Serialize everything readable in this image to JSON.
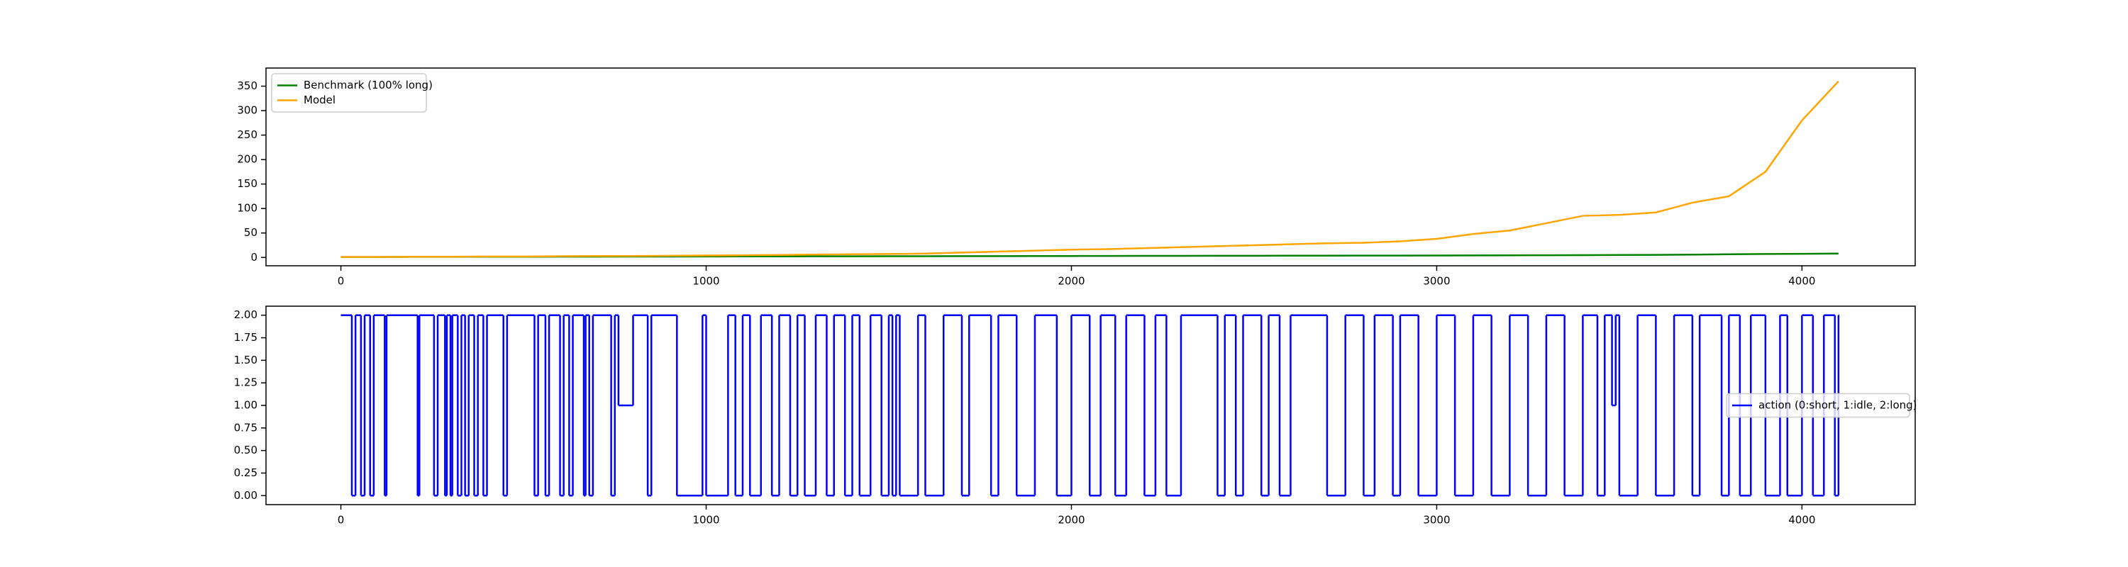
{
  "chart_data": [
    {
      "type": "line",
      "legend": "upper left",
      "x": [
        0,
        100,
        200,
        300,
        400,
        500,
        600,
        700,
        800,
        900,
        1000,
        1100,
        1200,
        1300,
        1400,
        1500,
        1600,
        1700,
        1800,
        1900,
        2000,
        2100,
        2200,
        2300,
        2400,
        2500,
        2600,
        2700,
        2800,
        2900,
        3000,
        3100,
        3200,
        3300,
        3400,
        3500,
        3600,
        3700,
        3800,
        3900,
        4000,
        4100
      ],
      "series": [
        {
          "name": "Benchmark (100% long)",
          "color": "#008000",
          "values": [
            1,
            1,
            1.2,
            1.3,
            1.4,
            1.5,
            1.6,
            1.7,
            1.8,
            1.9,
            2,
            2.1,
            2.2,
            2.3,
            2.4,
            2.5,
            2.6,
            2.7,
            2.8,
            2.9,
            3,
            3.1,
            3.2,
            3.3,
            3.4,
            3.5,
            3.6,
            3.7,
            3.8,
            3.9,
            4,
            4.2,
            4.4,
            4.6,
            4.8,
            5,
            5.3,
            5.8,
            6.5,
            7,
            7.5,
            8
          ]
        },
        {
          "name": "Model",
          "color": "#ffa500",
          "values": [
            1,
            1,
            1.5,
            1.5,
            2,
            2,
            2.5,
            3,
            3,
            3.5,
            4,
            4.5,
            5,
            6,
            6.5,
            7,
            8,
            10,
            12,
            14,
            16,
            17,
            19,
            21,
            23,
            25,
            27,
            29,
            30,
            33,
            38,
            48,
            55,
            70,
            85,
            87,
            92,
            112,
            125,
            175,
            280,
            360
          ]
        }
      ],
      "xlim": [
        -205,
        4310
      ],
      "xticks": [
        0,
        1000,
        2000,
        3000,
        4000
      ],
      "ylim": [
        -17,
        387
      ],
      "yticks": [
        0,
        50,
        100,
        150,
        200,
        250,
        300,
        350
      ]
    },
    {
      "type": "step",
      "legend": "center right",
      "x": [
        0,
        30,
        40,
        55,
        65,
        80,
        90,
        120,
        125,
        210,
        215,
        255,
        265,
        285,
        290,
        300,
        305,
        320,
        330,
        340,
        350,
        365,
        375,
        390,
        400,
        445,
        455,
        530,
        540,
        560,
        570,
        600,
        610,
        625,
        635,
        665,
        670,
        680,
        690,
        740,
        750,
        760,
        800,
        840,
        850,
        920,
        990,
        1000,
        1060,
        1080,
        1100,
        1120,
        1150,
        1180,
        1200,
        1230,
        1250,
        1270,
        1300,
        1330,
        1350,
        1380,
        1400,
        1420,
        1450,
        1480,
        1500,
        1510,
        1520,
        1530,
        1580,
        1600,
        1650,
        1700,
        1720,
        1780,
        1800,
        1850,
        1900,
        1960,
        2000,
        2050,
        2080,
        2120,
        2150,
        2200,
        2230,
        2260,
        2300,
        2400,
        2420,
        2450,
        2470,
        2520,
        2540,
        2570,
        2600,
        2700,
        2750,
        2800,
        2830,
        2880,
        2900,
        2950,
        3000,
        3050,
        3100,
        3150,
        3200,
        3250,
        3300,
        3350,
        3400,
        3440,
        3460,
        3480,
        3490,
        3500,
        3550,
        3600,
        3650,
        3700,
        3720,
        3780,
        3800,
        3830,
        3860,
        3900,
        3940,
        3960,
        4000,
        4030,
        4060,
        4090,
        4100
      ],
      "series": [
        {
          "name": "action (0:short, 1:idle, 2:long)",
          "color": "#0000ff",
          "values": [
            2,
            0,
            2,
            0,
            2,
            0,
            2,
            0,
            2,
            0,
            2,
            0,
            2,
            0,
            2,
            0,
            2,
            0,
            2,
            0,
            2,
            0,
            2,
            0,
            2,
            0,
            2,
            0,
            2,
            0,
            2,
            0,
            2,
            0,
            2,
            0,
            2,
            0,
            2,
            0,
            2,
            1,
            2,
            0,
            2,
            0,
            2,
            0,
            2,
            0,
            2,
            0,
            2,
            0,
            2,
            0,
            2,
            0,
            2,
            0,
            2,
            0,
            2,
            0,
            2,
            0,
            2,
            0,
            2,
            0,
            2,
            0,
            2,
            0,
            2,
            0,
            2,
            0,
            2,
            0,
            2,
            0,
            2,
            0,
            2,
            0,
            2,
            0,
            2,
            0,
            2,
            0,
            2,
            0,
            2,
            0,
            2,
            0,
            2,
            0,
            2,
            0,
            2,
            0,
            2,
            0,
            2,
            0,
            2,
            0,
            2,
            0,
            2,
            0,
            2,
            1,
            2,
            0,
            2,
            0,
            2,
            0,
            2,
            0,
            2,
            0,
            2,
            0,
            2,
            0,
            2,
            0,
            2,
            0,
            2
          ]
        }
      ],
      "xlim": [
        -205,
        4310
      ],
      "xticks": [
        0,
        1000,
        2000,
        3000,
        4000
      ],
      "ylim": [
        -0.1,
        2.1
      ],
      "yticks": [
        {
          "value": 0,
          "label": "0.00"
        },
        {
          "value": 0.25,
          "label": "0.25"
        },
        {
          "value": 0.5,
          "label": "0.50"
        },
        {
          "value": 0.75,
          "label": "0.75"
        },
        {
          "value": 1,
          "label": "1.00"
        },
        {
          "value": 1.25,
          "label": "1.25"
        },
        {
          "value": 1.5,
          "label": "1.50"
        },
        {
          "value": 1.75,
          "label": "1.75"
        },
        {
          "value": 2,
          "label": "2.00"
        }
      ]
    }
  ]
}
